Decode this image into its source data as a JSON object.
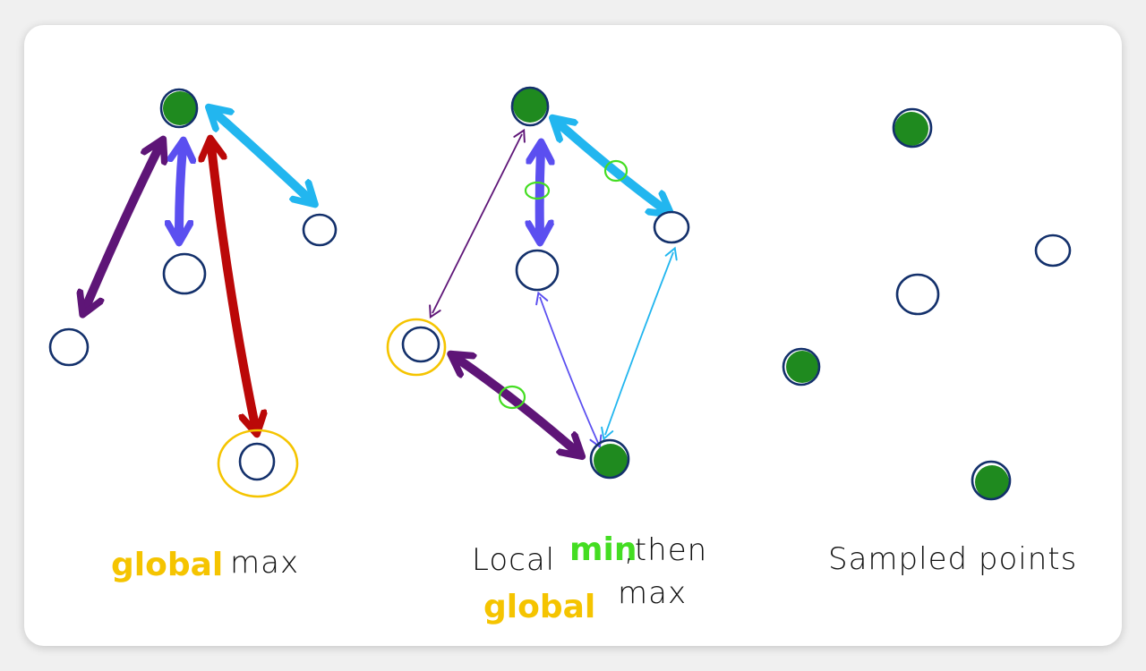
{
  "panels": [
    {
      "caption_prefix": "global",
      "caption_suffix": "max"
    },
    {
      "caption_line1_prefix": "Local",
      "caption_line1_highlight": "min",
      "caption_line1_suffix": ",then",
      "caption_line2_prefix": "global",
      "caption_line2_suffix": "max"
    },
    {
      "caption": "Sampled points"
    }
  ],
  "colors": {
    "selected_point": "#1f8a1f",
    "point_outline": "#13306b",
    "highlight_yellow": "#f5c400",
    "highlight_green": "#44dd22",
    "purple": "#5e1577",
    "violet": "#5b4ff0",
    "red": "#bb0808",
    "sky": "#22b6ef"
  }
}
